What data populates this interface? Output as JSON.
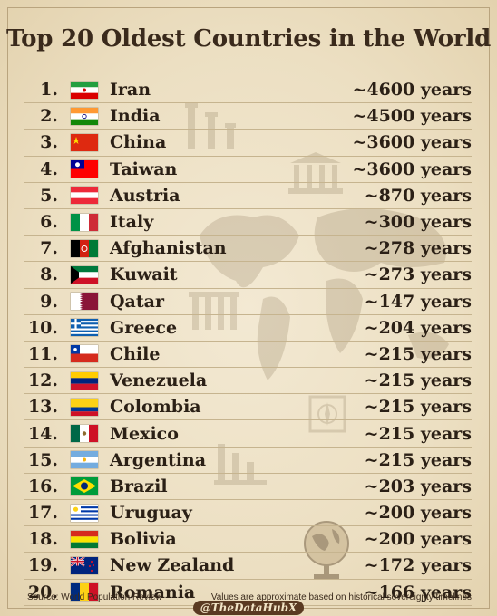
{
  "title": "Top 20 Oldest Countries in the World",
  "rows": [
    {
      "rank": "1.",
      "name": "Iran",
      "years": "~4600 years",
      "flag": "iran-flag-icon"
    },
    {
      "rank": "2.",
      "name": "India",
      "years": "~4500 years",
      "flag": "india-flag-icon"
    },
    {
      "rank": "3.",
      "name": "China",
      "years": "~3600 years",
      "flag": "china-flag-icon"
    },
    {
      "rank": "4.",
      "name": "Taiwan",
      "years": "~3600 years",
      "flag": "taiwan-flag-icon"
    },
    {
      "rank": "5.",
      "name": "Austria",
      "years": "~870 years",
      "flag": "austria-flag-icon"
    },
    {
      "rank": "6.",
      "name": "Italy",
      "years": "~300 years",
      "flag": "italy-flag-icon"
    },
    {
      "rank": "7.",
      "name": "Afghanistan",
      "years": "~278 years",
      "flag": "afghanistan-flag-icon"
    },
    {
      "rank": "8.",
      "name": "Kuwait",
      "years": "~273 years",
      "flag": "kuwait-flag-icon"
    },
    {
      "rank": "9.",
      "name": "Qatar",
      "years": "~147 years",
      "flag": "qatar-flag-icon"
    },
    {
      "rank": "10.",
      "name": "Greece",
      "years": "~204 years",
      "flag": "greece-flag-icon"
    },
    {
      "rank": "11.",
      "name": "Chile",
      "years": "~215 years",
      "flag": "chile-flag-icon"
    },
    {
      "rank": "12.",
      "name": "Venezuela",
      "years": "~215 years",
      "flag": "venezuela-flag-icon"
    },
    {
      "rank": "13.",
      "name": "Colombia",
      "years": "~215 years",
      "flag": "colombia-flag-icon"
    },
    {
      "rank": "14.",
      "name": "Mexico",
      "years": "~215 years",
      "flag": "mexico-flag-icon"
    },
    {
      "rank": "15.",
      "name": "Argentina",
      "years": "~215 years",
      "flag": "argentina-flag-icon"
    },
    {
      "rank": "16.",
      "name": "Brazil",
      "years": "~203 years",
      "flag": "brazil-flag-icon"
    },
    {
      "rank": "17.",
      "name": "Uruguay",
      "years": "~200 years",
      "flag": "uruguay-flag-icon"
    },
    {
      "rank": "18.",
      "name": "Bolivia",
      "years": "~200 years",
      "flag": "bolivia-flag-icon"
    },
    {
      "rank": "19.",
      "name": "New Zealand",
      "years": "~172 years",
      "flag": "new-zealand-flag-icon"
    },
    {
      "rank": "20.",
      "name": "Romania",
      "years": "~166 years",
      "flag": "romania-flag-icon"
    }
  ],
  "footer": {
    "source": "Source: World Population Review",
    "note": "Values are approximate based on historical sovereignty timelines",
    "handle": "@TheDataHubX"
  }
}
